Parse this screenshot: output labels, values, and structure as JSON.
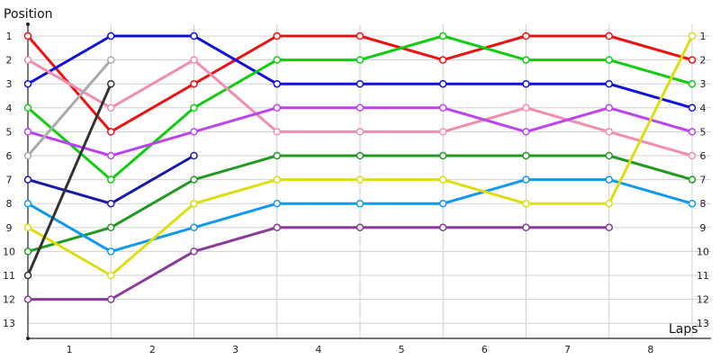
{
  "chart_data": {
    "type": "line",
    "ylabel": "Position",
    "xlabel": "Laps",
    "x": [
      0,
      1,
      2,
      3,
      4,
      5,
      6,
      7,
      8
    ],
    "x_tick_labels": [
      "1",
      "2",
      "3",
      "4",
      "5",
      "6",
      "7",
      "8"
    ],
    "y_tick_labels": [
      "1",
      "2",
      "3",
      "4",
      "5",
      "6",
      "7",
      "8",
      "9",
      "10",
      "11",
      "12",
      "13"
    ],
    "ylim": [
      1,
      13
    ],
    "y_inverted": true,
    "grid": true,
    "series": [
      {
        "color": "#ee1111",
        "values": [
          1,
          5,
          3,
          1,
          1,
          2,
          1,
          1,
          2
        ]
      },
      {
        "color": "#1111dd",
        "values": [
          3,
          1,
          1,
          3,
          3,
          3,
          3,
          3,
          4
        ]
      },
      {
        "color": "#11cc11",
        "values": [
          4,
          7,
          4,
          2,
          2,
          1,
          2,
          2,
          3
        ]
      },
      {
        "color": "#f28cb0",
        "values": [
          2,
          4,
          2,
          5,
          5,
          5,
          4,
          5,
          6
        ]
      },
      {
        "color": "#bb44ee",
        "values": [
          5,
          6,
          5,
          4,
          4,
          4,
          5,
          4,
          5
        ]
      },
      {
        "color": "#229922",
        "values": [
          10,
          9,
          7,
          6,
          6,
          6,
          6,
          6,
          7
        ]
      },
      {
        "color": "#1199ee",
        "values": [
          8,
          10,
          9,
          8,
          8,
          8,
          7,
          7,
          8
        ]
      },
      {
        "color": "#dddd11",
        "values": [
          9,
          11,
          8,
          7,
          7,
          7,
          8,
          8,
          1
        ]
      },
      {
        "color": "#8a3a9a",
        "values": [
          12,
          12,
          10,
          9,
          9,
          9,
          9,
          9,
          null
        ]
      },
      {
        "color": "#1a1aaa",
        "values": [
          7,
          8,
          6,
          null,
          null,
          null,
          null,
          null,
          null
        ]
      },
      {
        "color": "#aaaaaa",
        "values": [
          6,
          2,
          null,
          null,
          null,
          null,
          null,
          null,
          null
        ]
      },
      {
        "color": "#333333",
        "values": [
          11,
          3,
          null,
          null,
          null,
          null,
          null,
          null,
          null
        ]
      }
    ]
  }
}
